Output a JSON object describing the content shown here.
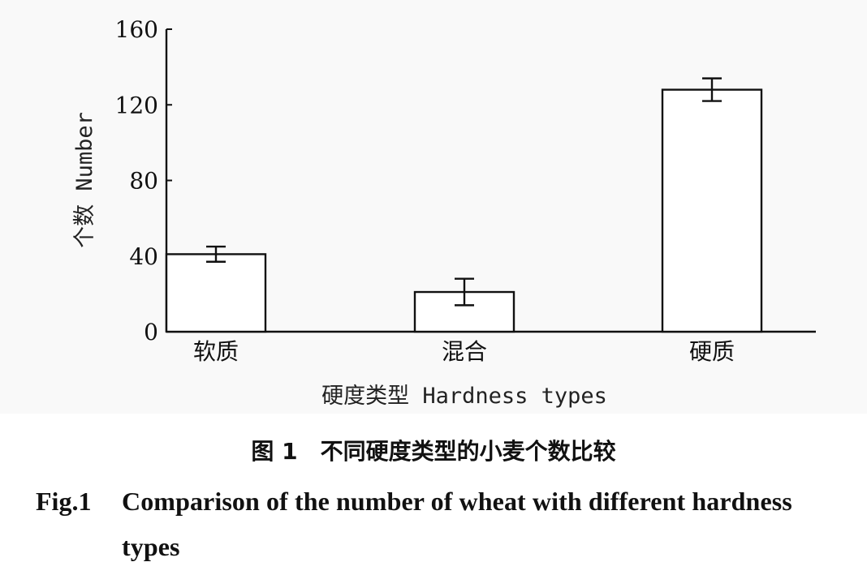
{
  "chart_data": {
    "type": "bar",
    "categories": [
      "软质",
      "混合",
      "硬质"
    ],
    "values": [
      41,
      21,
      128
    ],
    "error": [
      4,
      7,
      6
    ],
    "ylim": [
      0,
      160
    ],
    "yticks": [
      "0",
      "40",
      "80",
      "120",
      "160"
    ],
    "ylabel": "个数 Number",
    "xlabel": "硬度类型 Hardness types",
    "grid": false,
    "legend": "none"
  },
  "caption": {
    "cn": "图 1　不同硬度类型的小麦个数比较",
    "en_tag": "Fig.1",
    "en_text": "Comparison of the number of wheat with different hardness types"
  },
  "colors": {
    "bar_fill": "#ffffff",
    "stroke": "#111111",
    "panel_bg": "#f9f9f9"
  }
}
